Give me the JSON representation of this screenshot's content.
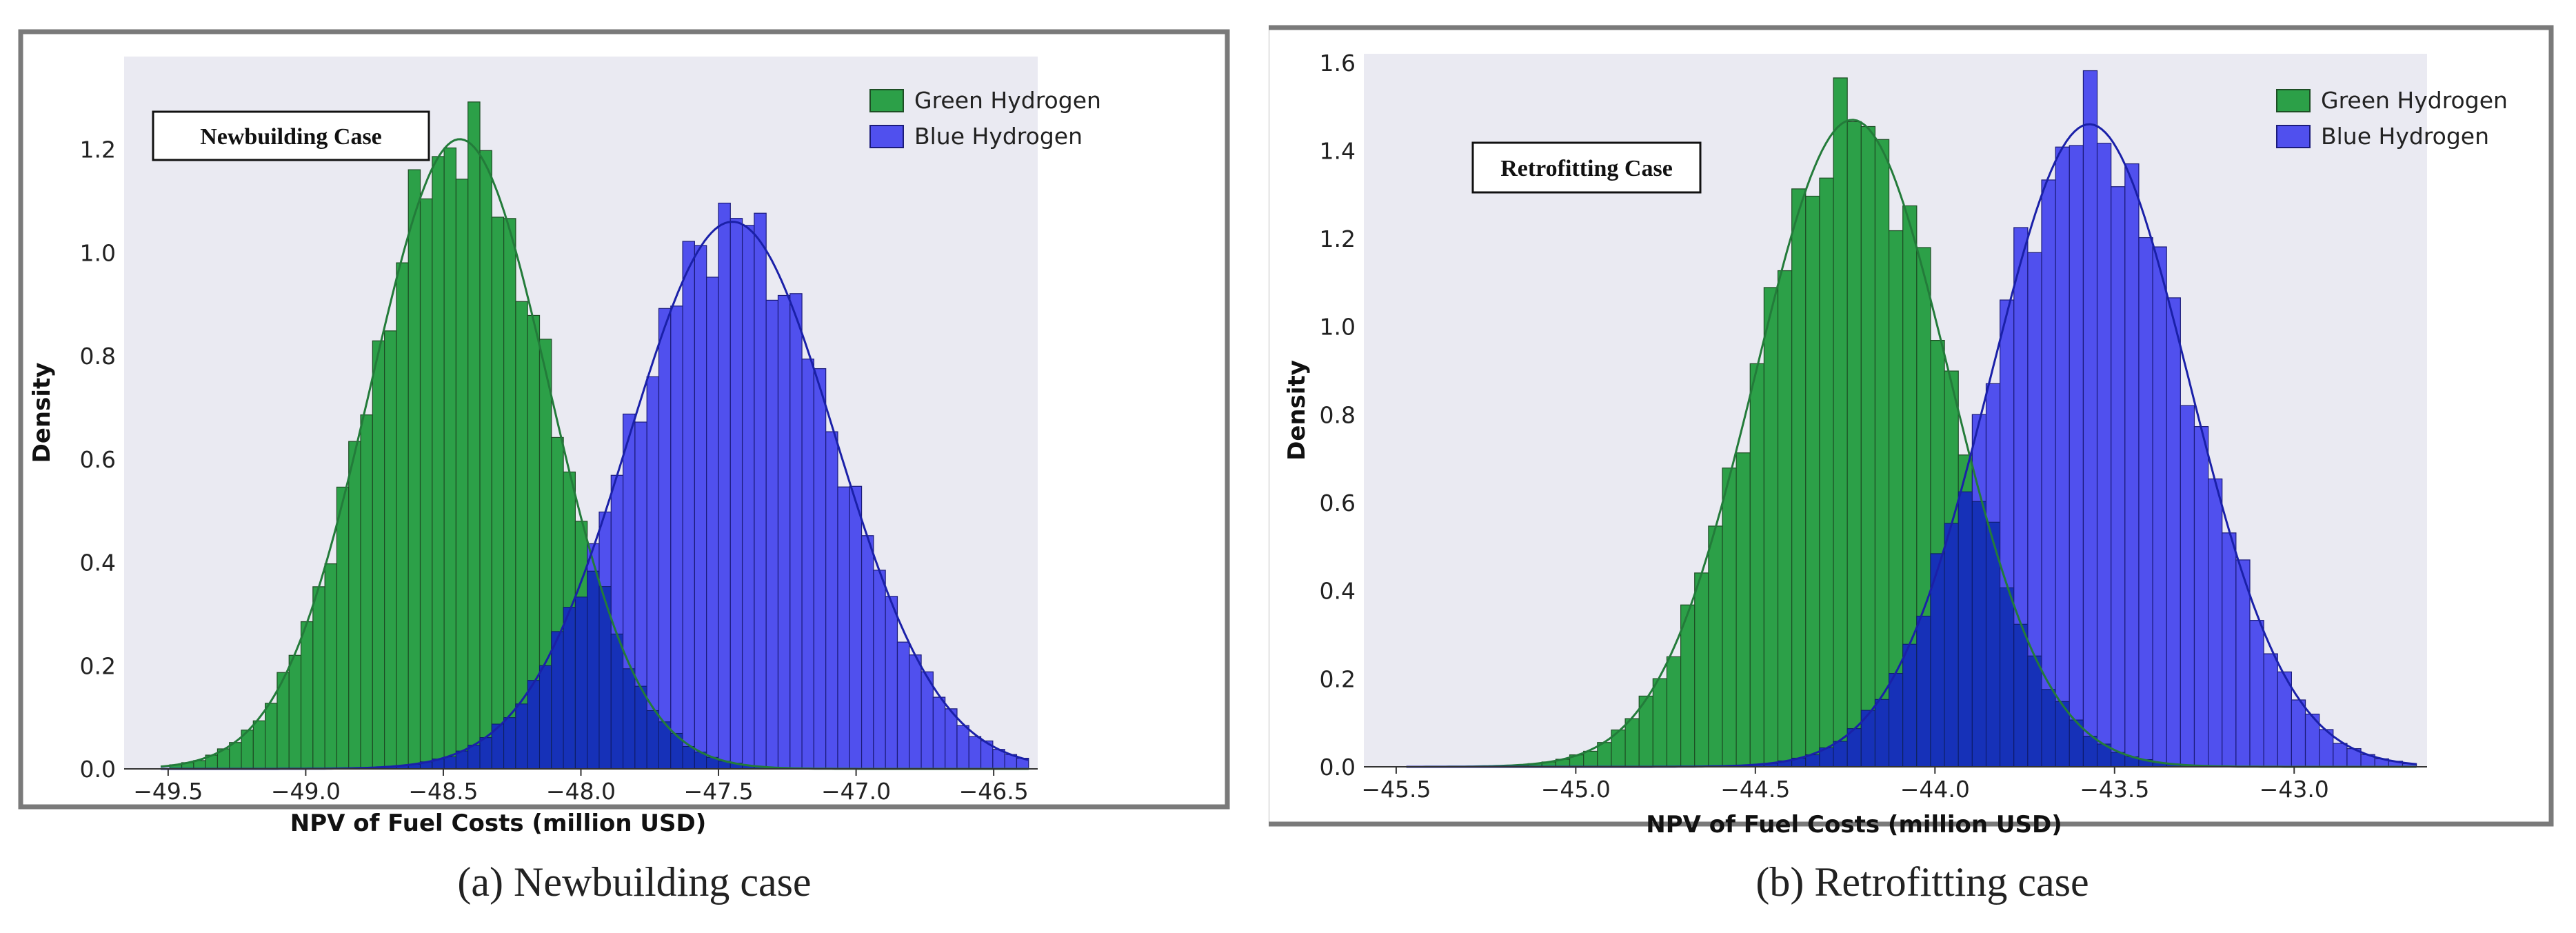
{
  "colors": {
    "plot_background": "#eaeaf2",
    "green_bar": "#2ca048",
    "green_edge": "#1d4d24",
    "green_line": "#237b3a",
    "blue_bar": "#5050ee",
    "blue_edge": "#1b1b7a",
    "overlap_bar": "#1631b8",
    "blue_line": "#1a20a8",
    "frame": "#7a7a7a"
  },
  "chart_data": [
    {
      "type": "histogram",
      "case_label": "Newbuilding Case",
      "caption": "(a) Newbuilding case",
      "xlabel": "NPV of Fuel Costs (million USD)",
      "ylabel": "Density",
      "xlim": [
        -49.66,
        -46.34
      ],
      "ylim": [
        0,
        1.38
      ],
      "xticks": [
        -49.5,
        -49.0,
        -48.5,
        -48.0,
        -47.5,
        -47.0,
        -46.5
      ],
      "xtick_labels": [
        "−49.5",
        "−49.0",
        "−48.5",
        "−48.0",
        "−47.5",
        "−47.0",
        "−46.5"
      ],
      "yticks": [
        0.0,
        0.2,
        0.4,
        0.6,
        0.8,
        1.0,
        1.2
      ],
      "ytick_labels": [
        "0.0",
        "0.2",
        "0.4",
        "0.6",
        "0.8",
        "1.0",
        "1.2"
      ],
      "legend_position": "top-right",
      "series": [
        {
          "name": "Green Hydrogen",
          "color": "green",
          "mean": -48.44,
          "sd": 0.325,
          "peak_density": 1.22
        },
        {
          "name": "Blue Hydrogen",
          "color": "blue",
          "mean": -47.45,
          "sd": 0.375,
          "peak_density": 1.06
        }
      ]
    },
    {
      "type": "histogram",
      "case_label": "Retrofitting Case",
      "caption": "(b) Retrofitting case",
      "xlabel": "NPV of Fuel Costs (million USD)",
      "ylabel": "Density",
      "xlim": [
        -45.59,
        -42.63
      ],
      "ylim": [
        0,
        1.62
      ],
      "xticks": [
        -45.5,
        -45.0,
        -44.5,
        -44.0,
        -43.5,
        -43.0
      ],
      "xtick_labels": [
        "−45.5",
        "−45.0",
        "−44.5",
        "−44.0",
        "−43.5",
        "−43.0"
      ],
      "yticks": [
        0.0,
        0.2,
        0.4,
        0.6,
        0.8,
        1.0,
        1.2,
        1.4,
        1.6
      ],
      "ytick_labels": [
        "0.0",
        "0.2",
        "0.4",
        "0.6",
        "0.8",
        "1.0",
        "1.2",
        "1.4",
        "1.6"
      ],
      "legend_position": "top-right",
      "series": [
        {
          "name": "Green Hydrogen",
          "color": "green",
          "mean": -44.23,
          "sd": 0.27,
          "peak_density": 1.47
        },
        {
          "name": "Blue Hydrogen",
          "color": "blue",
          "mean": -43.57,
          "sd": 0.275,
          "peak_density": 1.46
        }
      ]
    }
  ]
}
